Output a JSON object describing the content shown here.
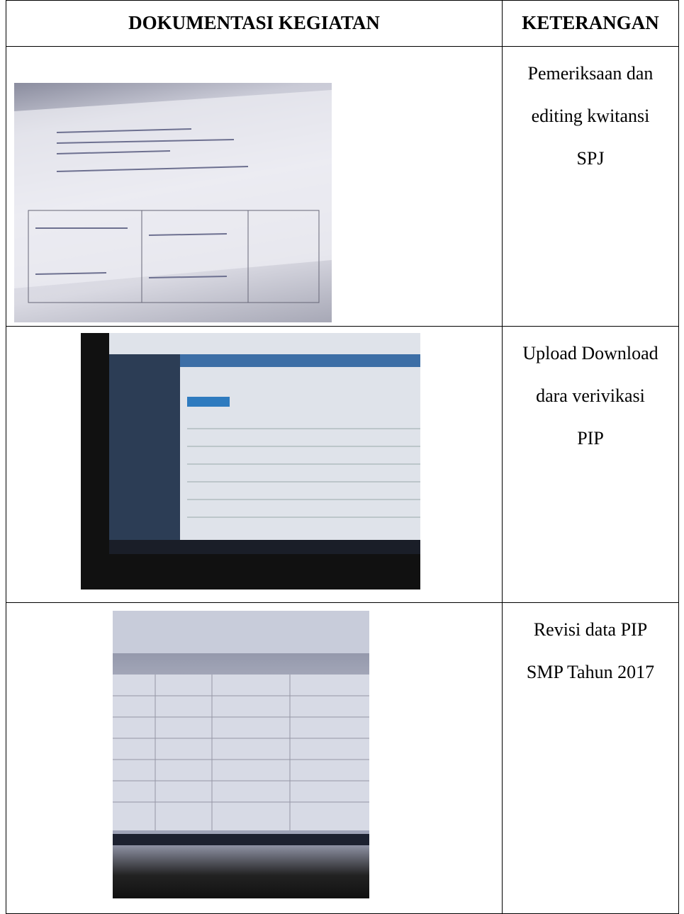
{
  "table": {
    "headers": [
      "DOKUMENTASI KEGIATAN",
      "KETERANGAN"
    ],
    "rows": [
      {
        "keterangan": [
          "Pemeriksaan dan",
          "editing kwitansi",
          "SPJ"
        ]
      },
      {
        "keterangan": [
          "Upload Download",
          "dara verivikasi",
          "PIP"
        ]
      },
      {
        "keterangan": [
          "Revisi data PIP",
          "SMP Tahun 2017"
        ]
      }
    ]
  }
}
